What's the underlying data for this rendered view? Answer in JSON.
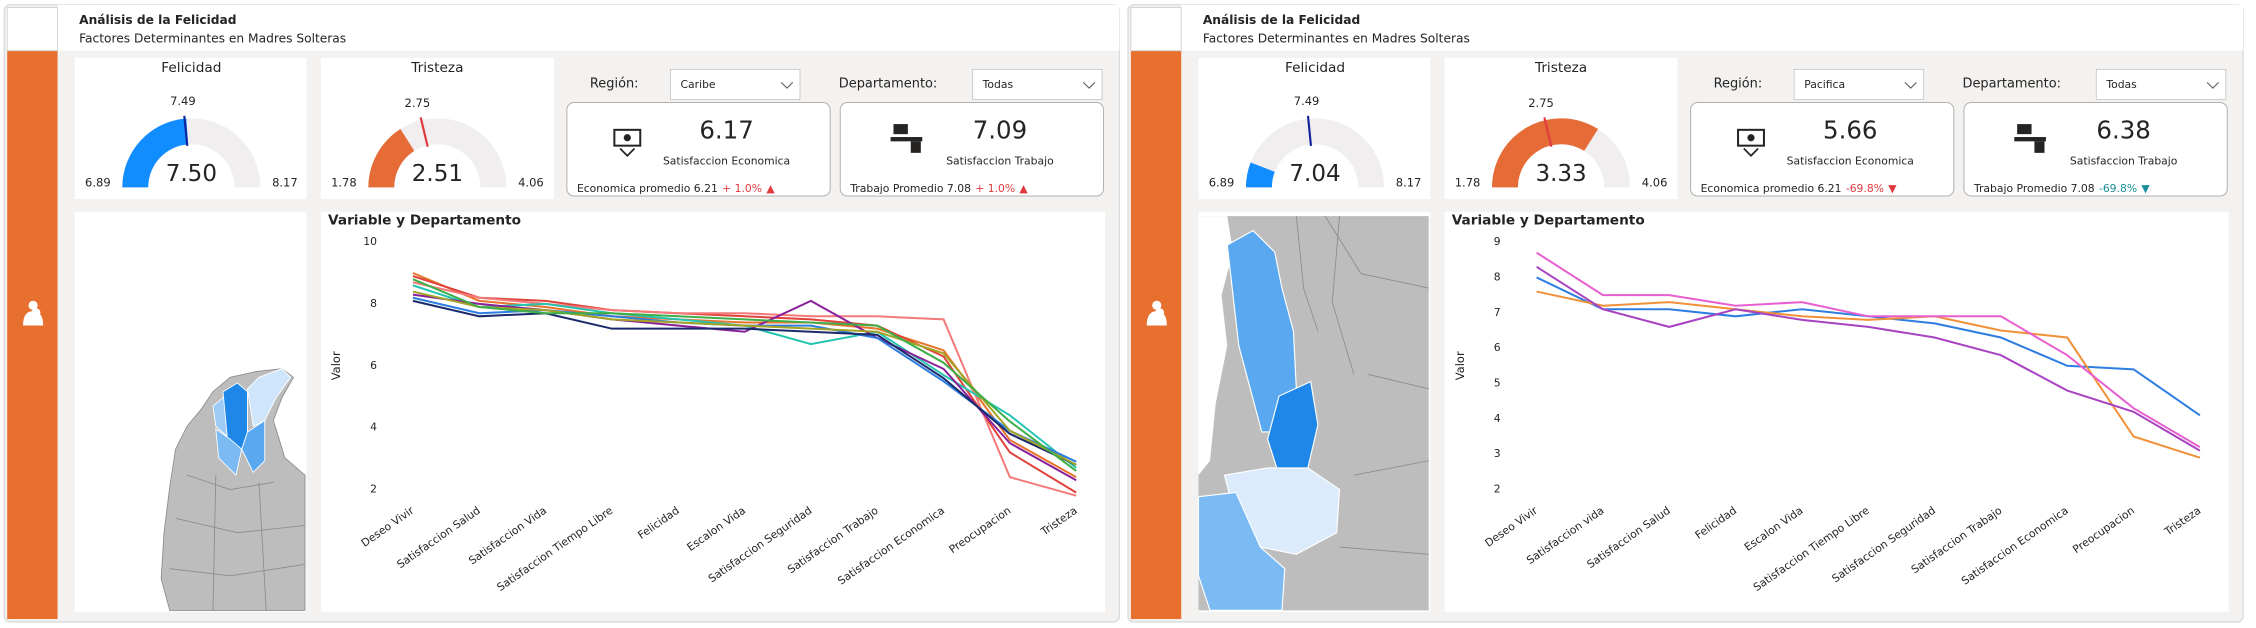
{
  "panels": [
    {
      "header": {
        "title": "Análisis de la Felicidad",
        "subtitle": "Factores Determinantes en Madres Solteras"
      },
      "filters": [
        {
          "label": "Región:",
          "value": "Caribe"
        },
        {
          "label": "Departamento:",
          "value": "Todas"
        }
      ],
      "kpis": [
        {
          "value": "6.17",
          "label": "Satisfaccion Economica",
          "footer": "Economica promedio 6.21",
          "change": "+ 1.0%",
          "change_icon": "▲",
          "change_color": "#e0393e"
        },
        {
          "value": "7.09",
          "label": "Satisfaccion Trabajo",
          "footer": "Trabajo Promedio 7.08",
          "change": "+ 1.0%",
          "change_icon": "▲",
          "change_color": "#e0393e"
        }
      ]
    },
    {
      "header": {
        "title": "Análisis de la Felicidad",
        "subtitle": "Factores Determinantes en Madres Solteras"
      },
      "filters": [
        {
          "label": "Región:",
          "value": "Pacifica"
        },
        {
          "label": "Departamento:",
          "value": "Todas"
        }
      ],
      "kpis": [
        {
          "value": "5.66",
          "label": "Satisfaccion Economica",
          "footer": "Economica promedio 6.21",
          "change": "-69.8%",
          "change_icon": "▼",
          "change_color": "#e0393e"
        },
        {
          "value": "6.38",
          "label": "Satisfaccion Trabajo",
          "footer": "Trabajo Promedio 7.08",
          "change": "-69.8%",
          "change_icon": "▼",
          "change_color": "#1a8f9c"
        }
      ]
    }
  ],
  "chart_data": [
    {
      "type": "gauge",
      "title": "Felicidad",
      "min": 6.89,
      "max": 8.17,
      "value": 7.5,
      "value_label": "7.50",
      "target": 7.49,
      "color": "#118dff",
      "target_color": "#12239e"
    },
    {
      "type": "gauge",
      "title": "Tristeza",
      "min": 1.78,
      "max": 4.06,
      "value": 2.51,
      "target": 2.75,
      "color": "#e66c37",
      "target_color": "#e0393e"
    },
    {
      "type": "line",
      "title": "Variable y Departamento",
      "y_label": "Valor",
      "categories": [
        "Deseo Vivir",
        "Satisfaccion Salud",
        "Satisfaccion Vida",
        "Satisfaccion Tiempo Libre",
        "Felicidad",
        "Escalon Vida",
        "Satisfaccion Seguridad",
        "Satisfaccion Trabajo",
        "Satisfaccion Economica",
        "Preocupacion",
        "Tristeza"
      ],
      "ylim": [
        2,
        10
      ],
      "yticks": [
        2,
        4,
        6,
        8,
        10
      ],
      "series": [
        {
          "color": "#e8742c",
          "values": [
            9.0,
            8.1,
            7.9,
            7.6,
            7.5,
            7.4,
            7.4,
            7.2,
            6.5,
            3.6,
            2.4
          ]
        },
        {
          "color": "#e0423a",
          "values": [
            8.9,
            8.2,
            8.1,
            7.8,
            7.7,
            7.6,
            7.5,
            7.3,
            6.3,
            3.2,
            1.9
          ]
        },
        {
          "color": "#f47a7a",
          "values": [
            8.7,
            8.2,
            8.0,
            7.8,
            7.7,
            7.7,
            7.6,
            7.6,
            7.5,
            2.4,
            1.8
          ]
        },
        {
          "color": "#25c4b0",
          "values": [
            8.6,
            7.9,
            8.0,
            7.7,
            7.5,
            7.3,
            6.7,
            7.1,
            5.7,
            4.4,
            2.7
          ]
        },
        {
          "color": "#8a1f9a",
          "values": [
            8.3,
            8.0,
            7.8,
            7.5,
            7.3,
            7.1,
            8.1,
            6.9,
            5.9,
            3.5,
            2.3
          ]
        },
        {
          "color": "#2e7de0",
          "values": [
            8.2,
            7.7,
            7.8,
            7.6,
            7.4,
            7.3,
            7.3,
            6.9,
            5.5,
            3.9,
            2.9
          ]
        },
        {
          "color": "#1b2a6b",
          "values": [
            8.1,
            7.6,
            7.7,
            7.2,
            7.2,
            7.2,
            7.1,
            7.0,
            5.6,
            3.8,
            2.8
          ]
        },
        {
          "color": "#a3a325",
          "values": [
            8.4,
            7.9,
            7.8,
            7.5,
            7.4,
            7.3,
            7.2,
            7.1,
            6.4,
            3.9,
            2.8
          ]
        },
        {
          "color": "#3fae49",
          "values": [
            8.8,
            7.9,
            7.7,
            7.7,
            7.6,
            7.5,
            7.4,
            7.3,
            6.1,
            4.2,
            2.6
          ]
        }
      ]
    },
    {
      "type": "gauge",
      "title": "Felicidad",
      "min": 6.89,
      "max": 8.17,
      "value": 7.04,
      "target": 7.49,
      "color": "#118dff",
      "target_color": "#12239e"
    },
    {
      "type": "gauge",
      "title": "Tristeza",
      "min": 1.78,
      "max": 4.06,
      "value": 3.33,
      "target": 2.75,
      "color": "#e66c37",
      "target_color": "#e0393e"
    },
    {
      "type": "line",
      "title": "Variable y Departamento",
      "y_label": "Valor",
      "categories": [
        "Deseo Vivir",
        "Satisfaccion vida",
        "Satisfaccion Salud",
        "Felicidad",
        "Escalon Vida",
        "Satisfaccion Tiempo Libre",
        "Satisfaccion Seguridad",
        "Satisfaccion Trabajo",
        "Satisfaccion Economica",
        "Preocupacion",
        "Tristeza"
      ],
      "ylim": [
        2,
        9
      ],
      "yticks": [
        2,
        3,
        4,
        5,
        6,
        7,
        8,
        9
      ],
      "series": [
        {
          "color": "#2e7de0",
          "values": [
            8.0,
            7.1,
            7.1,
            6.9,
            7.1,
            6.9,
            6.7,
            6.3,
            5.5,
            5.4,
            4.1
          ]
        },
        {
          "color": "#f0913a",
          "values": [
            7.6,
            7.2,
            7.3,
            7.1,
            6.9,
            6.8,
            6.9,
            6.5,
            6.3,
            3.5,
            2.9
          ]
        },
        {
          "color": "#e85fd0",
          "values": [
            8.7,
            7.5,
            7.5,
            7.2,
            7.3,
            6.9,
            6.9,
            6.9,
            5.8,
            4.3,
            3.2
          ]
        },
        {
          "color": "#a843c2",
          "values": [
            8.3,
            7.1,
            6.6,
            7.1,
            6.8,
            6.6,
            6.3,
            5.8,
            4.8,
            4.2,
            3.1
          ]
        }
      ]
    }
  ]
}
